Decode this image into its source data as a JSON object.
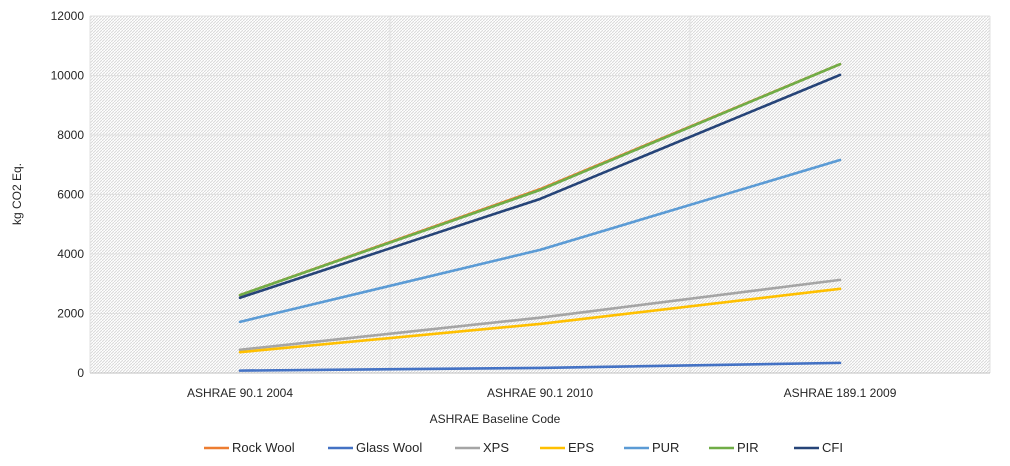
{
  "chart_data": {
    "type": "line",
    "title": "",
    "xlabel": "ASHRAE Baseline Code",
    "ylabel": "kg CO2 Eq.",
    "categories": [
      "ASHRAE 90.1 2004",
      "ASHRAE 90.1 2010",
      "ASHRAE 189.1 2009"
    ],
    "ylim": [
      0,
      12000
    ],
    "yticks": [
      0,
      2000,
      4000,
      6000,
      8000,
      10000,
      12000
    ],
    "grid": true,
    "legend_position": "bottom",
    "series": [
      {
        "name": "Rock Wool",
        "color": "#ED7D31",
        "values": [
          2620,
          6180,
          10380
        ]
      },
      {
        "name": "Glass Wool",
        "color": "#4472C4",
        "values": [
          80,
          170,
          340
        ]
      },
      {
        "name": "XPS",
        "color": "#A5A5A5",
        "values": [
          780,
          1860,
          3130
        ]
      },
      {
        "name": "EPS",
        "color": "#FFC000",
        "values": [
          700,
          1650,
          2830
        ]
      },
      {
        "name": "PUR",
        "color": "#5B9BD5",
        "values": [
          1720,
          4140,
          7160
        ]
      },
      {
        "name": "PIR",
        "color": "#70AD47",
        "values": [
          2620,
          6150,
          10380
        ]
      },
      {
        "name": "CFI",
        "color": "#264478",
        "values": [
          2530,
          5850,
          10020
        ]
      }
    ]
  }
}
